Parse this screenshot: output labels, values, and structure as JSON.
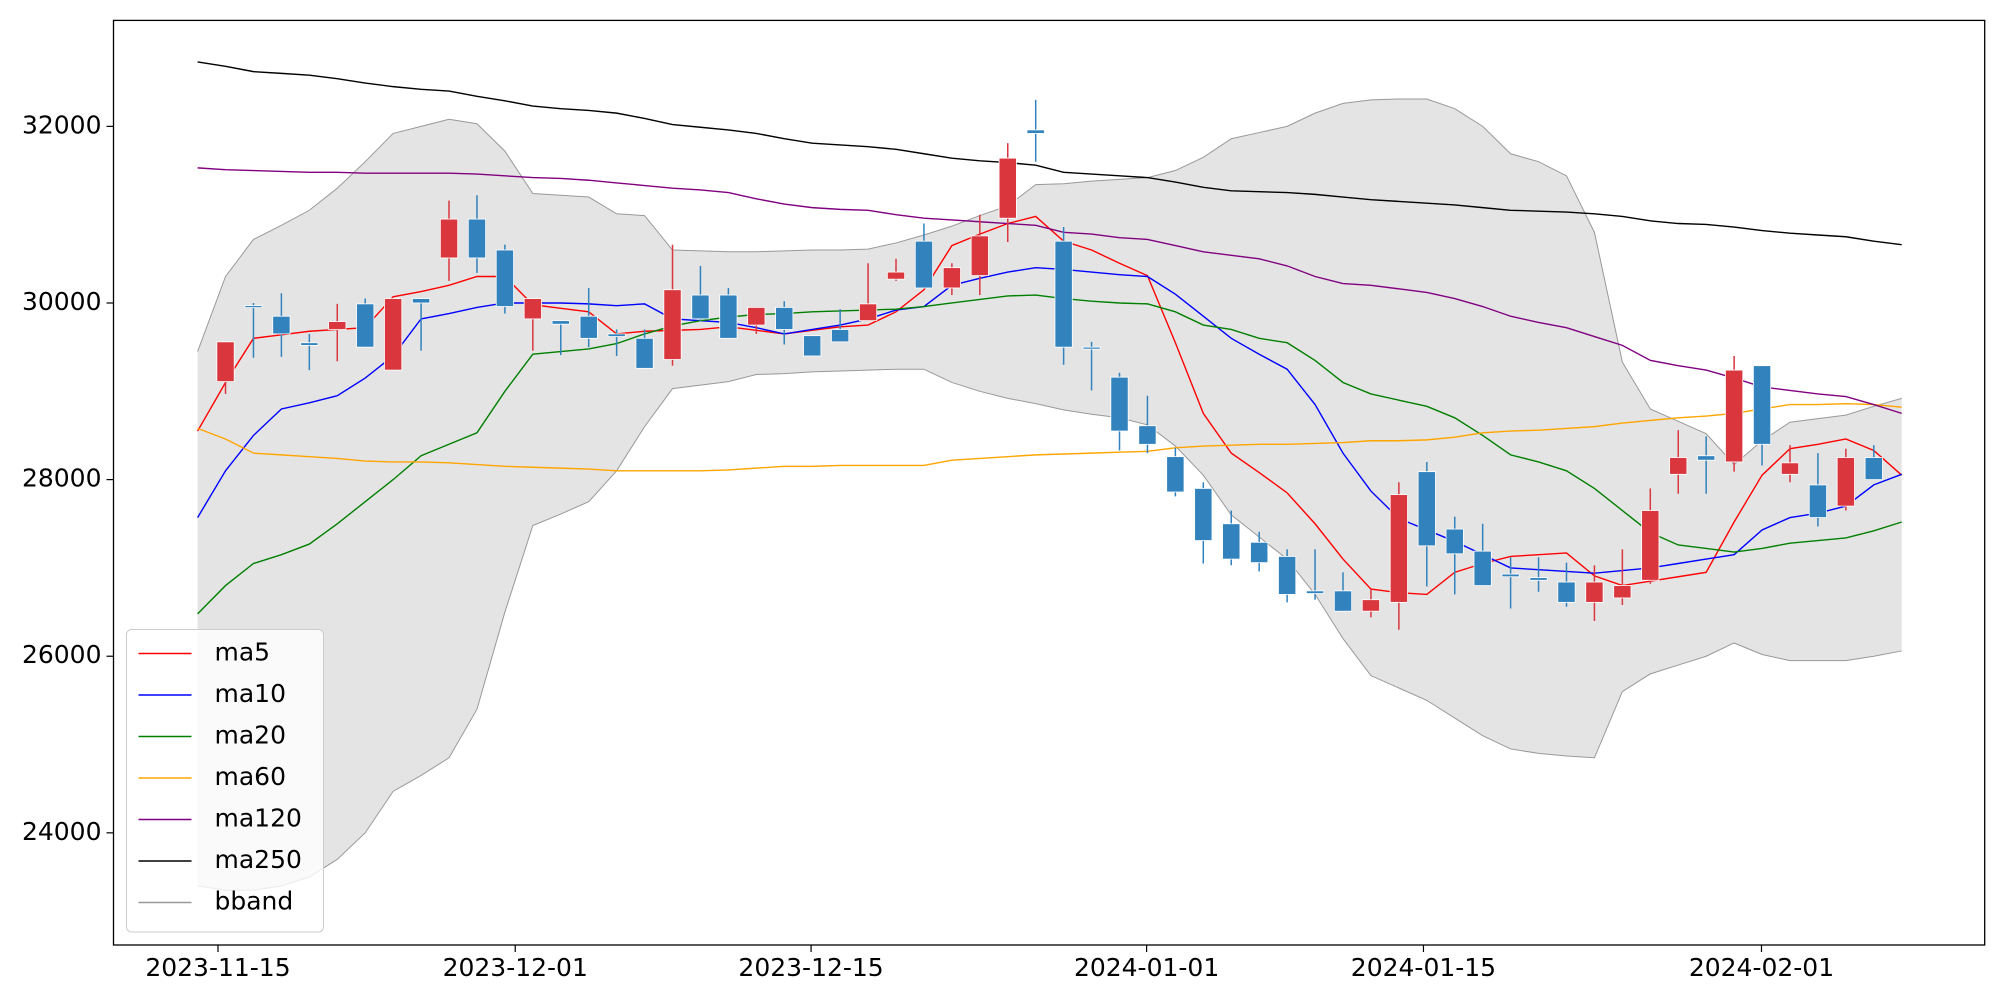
{
  "chart_data": {
    "type": "candlestick",
    "x": [
      0,
      1,
      2,
      3,
      4,
      5,
      6,
      7,
      8,
      9,
      10,
      11,
      12,
      13,
      14,
      15,
      16,
      17,
      18,
      19,
      20,
      21,
      22,
      23,
      24,
      25,
      26,
      27,
      28,
      29,
      30,
      31,
      32,
      33,
      34,
      35,
      36,
      37,
      38,
      39,
      40,
      41,
      42,
      43,
      44,
      45,
      46,
      47,
      48,
      49,
      50,
      51,
      52,
      53,
      54,
      55,
      56,
      57,
      58,
      59,
      60,
      61
    ],
    "xlim": [
      -3.01,
      63.97
    ],
    "xticks": [
      {
        "value": 0.73,
        "label": "2023-11-15"
      },
      {
        "value": 11.37,
        "label": "2023-12-01"
      },
      {
        "value": 21.96,
        "label": "2023-12-15"
      },
      {
        "value": 33.97,
        "label": "2024-01-01"
      },
      {
        "value": 43.88,
        "label": "2024-01-15"
      },
      {
        "value": 55.98,
        "label": "2024-02-01"
      }
    ],
    "ylim": [
      22730,
      33200
    ],
    "yticks": [
      24000,
      26000,
      28000,
      30000,
      32000
    ],
    "grid": false,
    "legend": "lower left",
    "up_color": "#d9363e",
    "down_color": "#3182bd",
    "candles": {
      "open": [
        null,
        29110,
        29970,
        29850,
        29550,
        29700,
        29990,
        29240,
        30050,
        30510,
        30950,
        30600,
        29820,
        29800,
        29850,
        29650,
        29600,
        29360,
        30090,
        30090,
        29750,
        29950,
        29630,
        29700,
        29800,
        30270,
        30700,
        30170,
        30310,
        30960,
        31960,
        30700,
        29500,
        29160,
        28610,
        28260,
        27900,
        27500,
        27290,
        27130,
        26740,
        26740,
        26510,
        26610,
        28090,
        27440,
        27190,
        26930,
        26890,
        26840,
        26610,
        26660,
        26860,
        28060,
        28270,
        28200,
        29290,
        28060,
        27940,
        27700,
        28250,
        null
      ],
      "high": [
        null,
        29560,
        30000,
        30110,
        29650,
        29990,
        30050,
        30050,
        30050,
        31160,
        31220,
        30660,
        30050,
        29800,
        30170,
        29700,
        29700,
        30660,
        30420,
        30170,
        29950,
        30020,
        29630,
        29930,
        30450,
        30500,
        30900,
        30450,
        31000,
        31810,
        32300,
        30860,
        29560,
        29210,
        28950,
        28360,
        27970,
        27650,
        27410,
        27210,
        27210,
        26950,
        26760,
        27970,
        28200,
        27580,
        27500,
        27120,
        27120,
        27060,
        27030,
        27210,
        27900,
        28560,
        28490,
        29400,
        29290,
        28390,
        28300,
        28350,
        28390,
        null
      ],
      "low": [
        null,
        28970,
        29380,
        29390,
        29240,
        29340,
        29500,
        29240,
        29460,
        30250,
        30340,
        29880,
        29460,
        29410,
        29500,
        29400,
        29260,
        29290,
        29790,
        29600,
        29650,
        29530,
        29400,
        29560,
        29800,
        30250,
        30170,
        30090,
        30090,
        30690,
        31600,
        29300,
        29010,
        28330,
        28300,
        27810,
        27050,
        27030,
        26960,
        26610,
        26640,
        26510,
        26440,
        26300,
        26790,
        26700,
        26800,
        26540,
        26730,
        26560,
        26400,
        26580,
        26820,
        27840,
        27840,
        28090,
        28160,
        27970,
        27470,
        27650,
        28000,
        null
      ],
      "close": [
        null,
        29560,
        29950,
        29650,
        29520,
        29790,
        29500,
        30050,
        30000,
        30950,
        30510,
        29960,
        30050,
        29760,
        29600,
        29620,
        29260,
        30150,
        29820,
        29600,
        29950,
        29700,
        29400,
        29560,
        29990,
        30350,
        30170,
        30400,
        30760,
        31640,
        31920,
        29500,
        29480,
        28550,
        28400,
        27860,
        27310,
        27100,
        27060,
        26700,
        26710,
        26510,
        26640,
        27830,
        27250,
        27160,
        26800,
        26900,
        26860,
        26610,
        26840,
        26800,
        27650,
        28250,
        28220,
        29240,
        28400,
        28190,
        27570,
        28250,
        28000,
        null
      ]
    },
    "series": [
      {
        "name": "ma5",
        "color": "#ff0000",
        "values": [
          28550,
          29100,
          29600,
          29640,
          29680,
          29700,
          29720,
          30070,
          30130,
          30200,
          30300,
          30300,
          29980,
          29940,
          29900,
          29650,
          29680,
          29690,
          29700,
          29730,
          29690,
          29650,
          29690,
          29730,
          29750,
          29900,
          30150,
          30650,
          30780,
          30900,
          30980,
          30700,
          30600,
          30450,
          30310,
          29550,
          28750,
          28300,
          28080,
          27850,
          27500,
          27100,
          26760,
          26720,
          26700,
          26950,
          27050,
          27130,
          27150,
          27170,
          26910,
          26800,
          26850,
          26900,
          26950,
          27520,
          28050,
          28350,
          28400,
          28460,
          28330,
          28050
        ]
      },
      {
        "name": "ma10",
        "color": "#0000ff",
        "values": [
          27570,
          28100,
          28500,
          28800,
          28870,
          28950,
          29150,
          29400,
          29820,
          29880,
          29950,
          30000,
          30000,
          30000,
          29990,
          29970,
          29990,
          29820,
          29800,
          29780,
          29720,
          29650,
          29700,
          29750,
          29820,
          29920,
          29960,
          30200,
          30280,
          30350,
          30400,
          30380,
          30350,
          30320,
          30300,
          30100,
          29850,
          29600,
          29420,
          29250,
          28850,
          28300,
          27870,
          27560,
          27430,
          27300,
          27150,
          27000,
          26980,
          26960,
          26940,
          26970,
          27000,
          27050,
          27100,
          27150,
          27430,
          27570,
          27620,
          27700,
          27940,
          28060
        ]
      },
      {
        "name": "ma20",
        "color": "#008000",
        "values": [
          26480,
          26800,
          27050,
          27150,
          27270,
          27500,
          27750,
          28000,
          28270,
          28400,
          28530,
          29000,
          29420,
          29450,
          29480,
          29540,
          29650,
          29740,
          29800,
          29840,
          29870,
          29880,
          29900,
          29910,
          29920,
          29930,
          29960,
          30000,
          30040,
          30080,
          30090,
          30050,
          30020,
          30000,
          29990,
          29900,
          29750,
          29700,
          29600,
          29550,
          29350,
          29100,
          28970,
          28900,
          28830,
          28700,
          28500,
          28280,
          28200,
          28100,
          27900,
          27650,
          27400,
          27260,
          27220,
          27180,
          27220,
          27280,
          27310,
          27340,
          27420,
          27520
        ]
      },
      {
        "name": "ma60",
        "color": "#ffa500",
        "values": [
          28580,
          28460,
          28300,
          28280,
          28260,
          28240,
          28210,
          28200,
          28200,
          28190,
          28170,
          28150,
          28140,
          28130,
          28120,
          28100,
          28100,
          28100,
          28100,
          28110,
          28130,
          28150,
          28150,
          28160,
          28160,
          28160,
          28160,
          28220,
          28240,
          28260,
          28280,
          28290,
          28300,
          28310,
          28320,
          28360,
          28380,
          28390,
          28400,
          28400,
          28410,
          28420,
          28440,
          28440,
          28450,
          28480,
          28530,
          28550,
          28560,
          28580,
          28600,
          28640,
          28670,
          28700,
          28720,
          28750,
          28800,
          28850,
          28850,
          28860,
          28850,
          28820
        ]
      },
      {
        "name": "ma120",
        "color": "#800080",
        "values": [
          31530,
          31510,
          31500,
          31490,
          31480,
          31480,
          31470,
          31470,
          31470,
          31470,
          31460,
          31440,
          31420,
          31410,
          31390,
          31360,
          31330,
          31300,
          31280,
          31250,
          31180,
          31120,
          31080,
          31060,
          31050,
          31000,
          30960,
          30940,
          30920,
          30900,
          30880,
          30800,
          30780,
          30740,
          30720,
          30650,
          30580,
          30540,
          30500,
          30420,
          30300,
          30220,
          30200,
          30160,
          30120,
          30050,
          29960,
          29850,
          29780,
          29720,
          29620,
          29520,
          29350,
          29290,
          29240,
          29150,
          29050,
          29010,
          28970,
          28940,
          28850,
          28750
        ]
      },
      {
        "name": "ma250",
        "color": "#000000",
        "values": [
          32730,
          32680,
          32620,
          32600,
          32580,
          32540,
          32490,
          32450,
          32420,
          32400,
          32340,
          32290,
          32230,
          32200,
          32180,
          32150,
          32090,
          32020,
          31990,
          31960,
          31920,
          31860,
          31810,
          31790,
          31770,
          31740,
          31690,
          31640,
          31610,
          31590,
          31560,
          31480,
          31460,
          31440,
          31420,
          31370,
          31310,
          31270,
          31260,
          31250,
          31230,
          31200,
          31170,
          31150,
          31130,
          31110,
          31080,
          31050,
          31040,
          31030,
          31010,
          30980,
          30930,
          30900,
          30890,
          30860,
          30820,
          30790,
          30770,
          30750,
          30700,
          30660
        ]
      }
    ],
    "bband": {
      "name": "bband",
      "color": "#999999",
      "fill": "#e4e4e4",
      "upper": [
        29450,
        30300,
        30720,
        30880,
        31050,
        31300,
        31600,
        31920,
        32000,
        32080,
        32030,
        31720,
        31240,
        31220,
        31200,
        31010,
        30990,
        30600,
        30590,
        30580,
        30580,
        30590,
        30600,
        30600,
        30610,
        30680,
        30770,
        30870,
        30990,
        31100,
        31340,
        31350,
        31380,
        31400,
        31420,
        31500,
        31650,
        31860,
        31930,
        32000,
        32150,
        32260,
        32300,
        32310,
        32310,
        32200,
        32000,
        31690,
        31600,
        31440,
        30800,
        29330,
        28800,
        28660,
        28520,
        28170,
        28440,
        28650,
        28690,
        28730,
        28830,
        28920
      ],
      "lower": [
        23400,
        23350,
        23350,
        23400,
        23500,
        23700,
        24000,
        24470,
        24650,
        24850,
        25400,
        26500,
        27480,
        27610,
        27750,
        28100,
        28600,
        29030,
        29070,
        29110,
        29190,
        29200,
        29220,
        29230,
        29240,
        29250,
        29250,
        29100,
        29000,
        28920,
        28860,
        28790,
        28740,
        28700,
        28620,
        28380,
        28050,
        27600,
        27350,
        27100,
        26700,
        26200,
        25780,
        25640,
        25500,
        25300,
        25100,
        24950,
        24900,
        24870,
        24850,
        25600,
        25800,
        25900,
        26000,
        26150,
        26020,
        25950,
        25950,
        25950,
        26000,
        26060
      ]
    }
  }
}
